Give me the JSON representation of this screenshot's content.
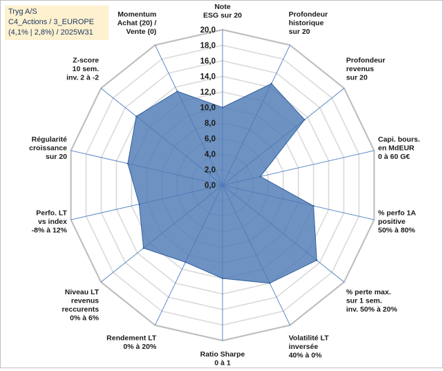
{
  "info": {
    "line1": "Tryg A/S",
    "line2": "C4_Actions / 3_EUROPE",
    "line3": "(4,1% | 2,8%) / 2025W31"
  },
  "colors": {
    "fill": "#4e7ab5",
    "stroke": "#2f5f9e",
    "grid": "#d9d9d9",
    "outer_ring": "#bfbfbf",
    "spoke": "#4a7cc0",
    "info_bg": "#fdf1cf"
  },
  "chart_data": {
    "type": "radar",
    "title": "",
    "range": [
      0,
      20
    ],
    "tick_step": 2,
    "tick_labels": [
      "0,0",
      "2,0",
      "4,0",
      "6,0",
      "8,0",
      "10,0",
      "12,0",
      "14,0",
      "16,0",
      "18,0",
      "20,0"
    ],
    "axes": [
      [
        "Note",
        "ESG sur 20"
      ],
      [
        "Profondeur",
        "historique",
        "sur 20"
      ],
      [
        "Profondeur",
        "revenus",
        "sur 20"
      ],
      [
        "Capi. bours.",
        "en MdEUR",
        "0 à 60 G€"
      ],
      [
        "% perfo 1A",
        "positive",
        "50% à 80%"
      ],
      [
        "% perte max.",
        "sur 1 sem.",
        "inv. 50% à 20%"
      ],
      [
        "Volatilité LT",
        "inversée",
        "40% à 0%"
      ],
      [
        "Ratio Sharpe",
        "0 à 1"
      ],
      [
        "Rendement LT",
        "0% à 20%"
      ],
      [
        "Niveau LT",
        "revenus",
        "reccurents",
        "0% à 6%"
      ],
      [
        "Perfo. LT",
        "vs index",
        "-8% à 12%"
      ],
      [
        "Régularité",
        "croissance",
        "sur 20"
      ],
      [
        "Z-score",
        "10 sem.",
        "inv. 2 à -2"
      ],
      [
        "Momentum",
        "Achat (20) /",
        "Vente (0)"
      ]
    ],
    "series": [
      {
        "values": [
          10.0,
          14.5,
          13.5,
          5.0,
          12.0,
          15.5,
          14.0,
          12.0,
          11.0,
          13.0,
          11.0,
          12.5,
          14.2,
          13.4
        ]
      }
    ]
  }
}
